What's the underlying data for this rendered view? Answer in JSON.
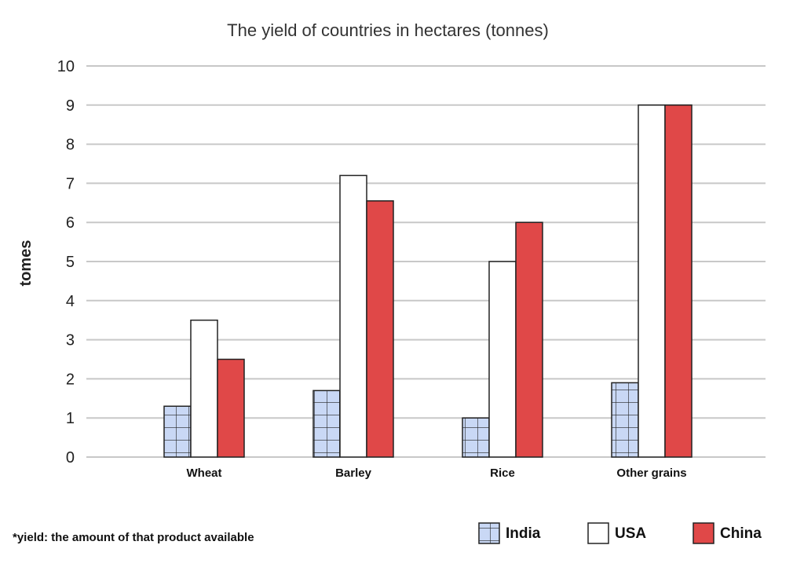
{
  "chart_data": {
    "type": "bar",
    "title": "The yield of countries in hectares (tonnes)",
    "xlabel": "",
    "ylabel": "tomes",
    "ylim": [
      0,
      10
    ],
    "yticks": [
      "0",
      "1",
      "2",
      "3",
      "4",
      "5",
      "6",
      "7",
      "8",
      "9",
      "10"
    ],
    "grid": true,
    "legend_position": "bottom-right",
    "categories": [
      "Wheat",
      "Barley",
      "Rice",
      "Other grains"
    ],
    "series": [
      {
        "name": "India",
        "values": [
          1.3,
          1.7,
          1.0,
          1.9
        ],
        "color": "#c9d8f5",
        "pattern": "grid"
      },
      {
        "name": "USA",
        "values": [
          3.5,
          7.2,
          5.0,
          9.0
        ],
        "color": "#ffffff",
        "pattern": "none"
      },
      {
        "name": "China",
        "values": [
          2.5,
          6.55,
          6.0,
          9.0
        ],
        "color": "#e04848",
        "pattern": "none"
      }
    ],
    "footnote": "*yield: the amount of that product available"
  }
}
